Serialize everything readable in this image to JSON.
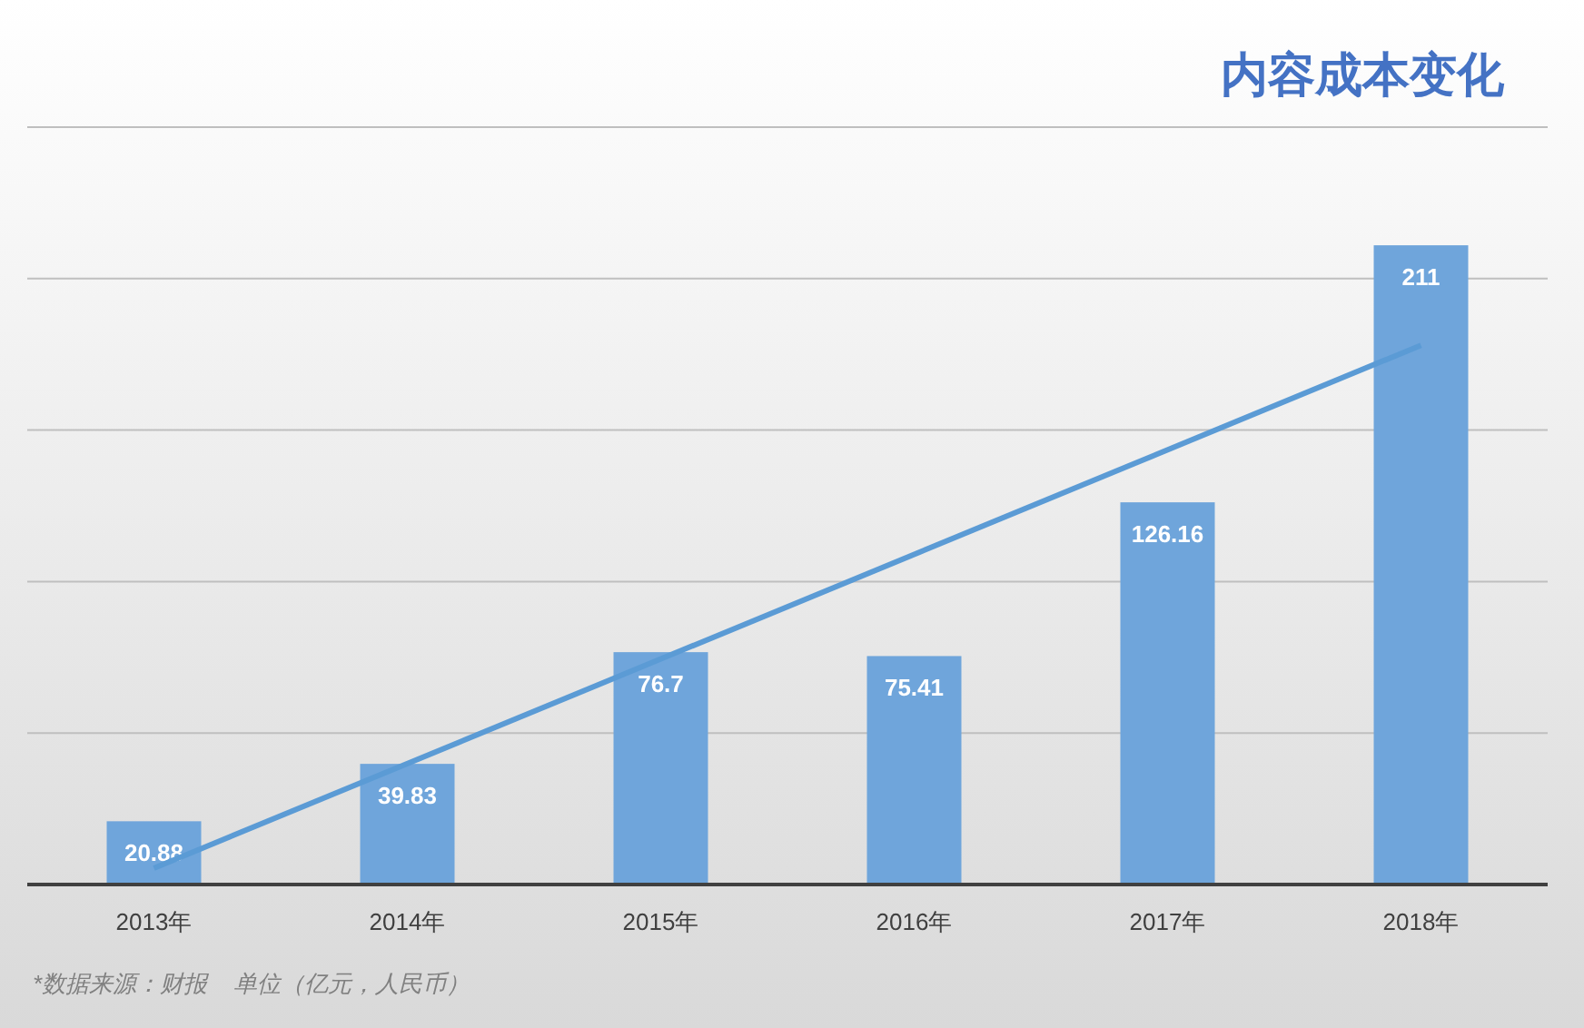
{
  "chart_data": {
    "type": "bar",
    "title": "内容成本变化",
    "categories": [
      "2013年",
      "2014年",
      "2015年",
      "2016年",
      "2017年",
      "2018年"
    ],
    "series": [
      {
        "color": "#6fa5db",
        "values": [
          20.88,
          39.83,
          76.7,
          75.41,
          126.16,
          211
        ],
        "value_labels": [
          "20.88",
          "39.83",
          "76.7",
          "75.41",
          "126.16",
          "211"
        ]
      },
      {
        "type": "line",
        "color": "#5b9bd5",
        "x": [
          "2013年",
          "2018年"
        ],
        "values": [
          5.4,
          178
        ]
      }
    ],
    "ylim": [
      0,
      250
    ],
    "yticks": [
      {
        "value": 0,
        "label": null
      },
      {
        "value": 50,
        "label": null
      },
      {
        "value": 100,
        "label": null
      },
      {
        "value": 150,
        "label": null
      },
      {
        "value": 200,
        "label": null
      },
      {
        "value": 250,
        "label": null
      }
    ],
    "grid": "y",
    "tick_labels": "x",
    "annotations": [
      "*数据来源：财报    单位（亿元，人民币）"
    ]
  }
}
